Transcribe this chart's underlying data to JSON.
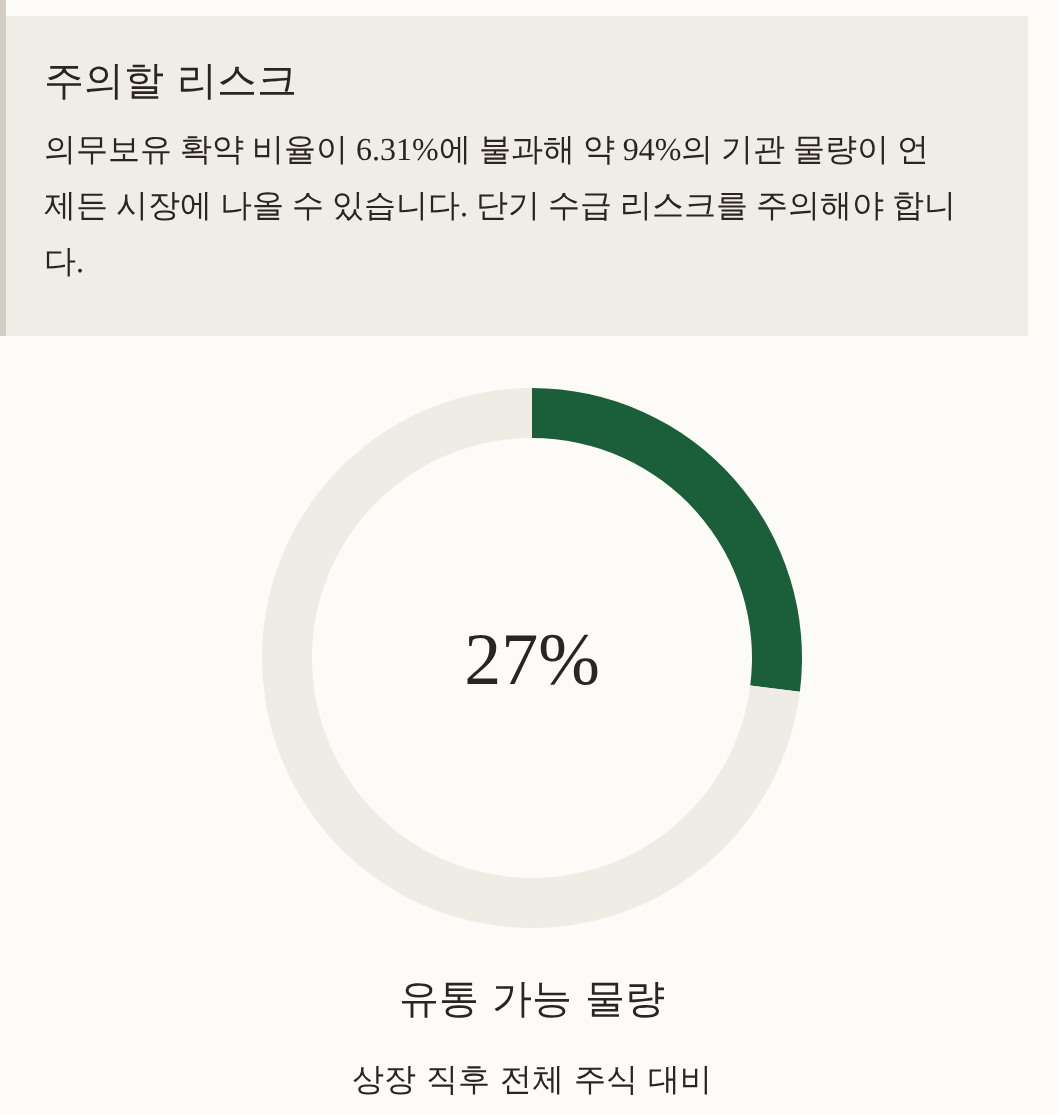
{
  "chart_data": [
    {
      "type": "other",
      "title": "주의할 리스크",
      "annotations": [
        "의무보유 확약 비율이 6.31%에 불과해 약 94%의 기관 물량이 언제든 시장에 나올 수 있습니다. 단기 수급 리스크를 주의해야 합니다."
      ]
    },
    {
      "type": "donut",
      "title": "유통 가능 물량",
      "subtitle": "상장 직후 전체 주식 대비",
      "categories": [
        null,
        null
      ],
      "values": [
        27,
        73
      ],
      "colors": [
        "#1b5e3a",
        "#efece6"
      ],
      "annotations": [
        "27%"
      ]
    }
  ]
}
